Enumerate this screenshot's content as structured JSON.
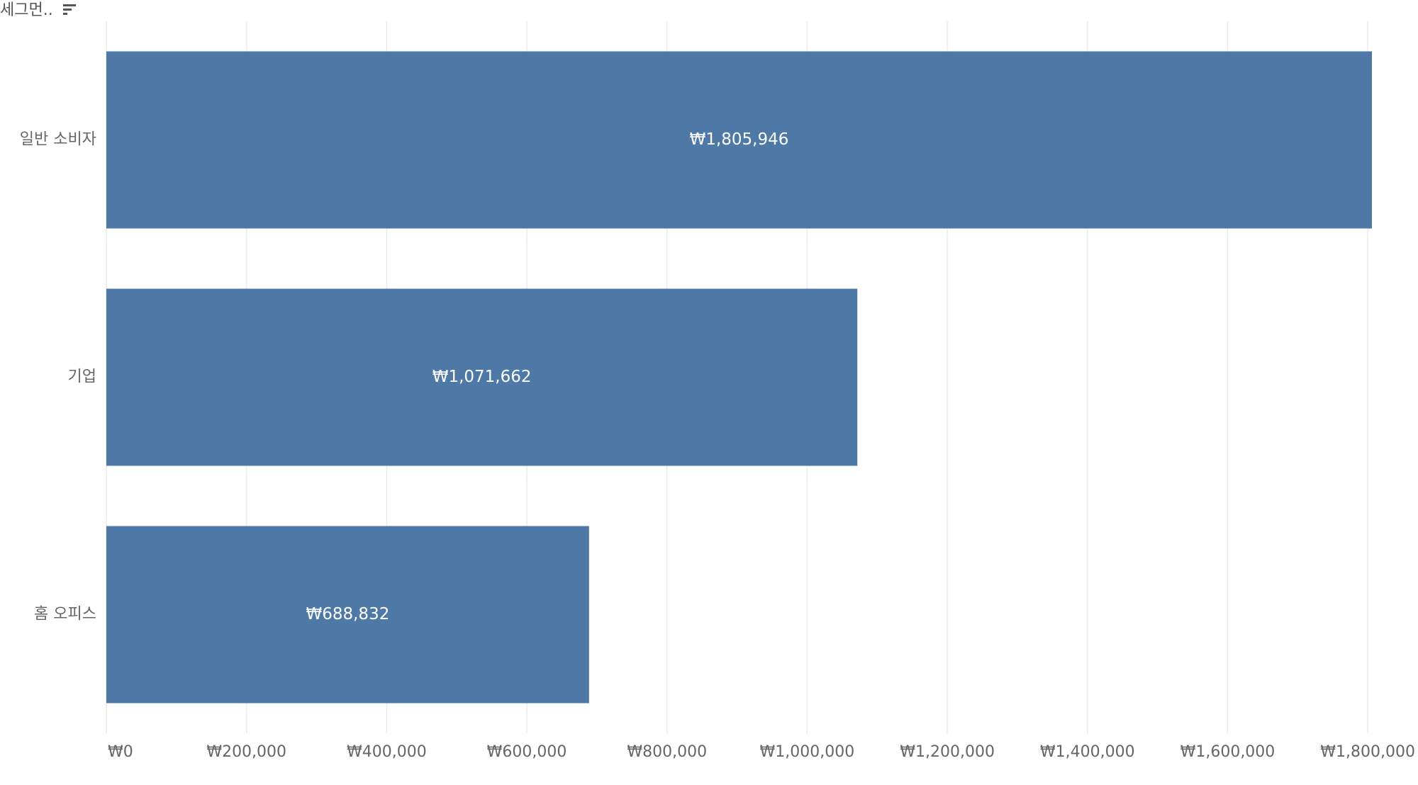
{
  "header": {
    "title": "세그먼..",
    "sort_icon": "sort-descending-icon"
  },
  "colors": {
    "bar": "#4e78a6",
    "grid": "#ececec",
    "axis_text": "#666666",
    "label_text": "#ffffff",
    "background": "#ffffff"
  },
  "chart_data": {
    "type": "bar",
    "orientation": "horizontal",
    "categories": [
      "일반 소비자",
      "기업",
      "홈 오피스"
    ],
    "values": [
      1805946,
      1071662,
      688832
    ],
    "data_labels": [
      "₩1,805,946",
      "₩1,071,662",
      "₩688,832"
    ],
    "x_ticks": [
      0,
      200000,
      400000,
      600000,
      800000,
      1000000,
      1200000,
      1400000,
      1600000,
      1800000
    ],
    "x_tick_labels": [
      "₩0",
      "₩200,000",
      "₩400,000",
      "₩600,000",
      "₩800,000",
      "₩1,000,000",
      "₩1,200,000",
      "₩1,400,000",
      "₩1,600,000",
      "₩1,800,000"
    ],
    "xlim": [
      0,
      1805946
    ],
    "ylabel": "세그먼..",
    "grid": true,
    "legend": "none"
  }
}
